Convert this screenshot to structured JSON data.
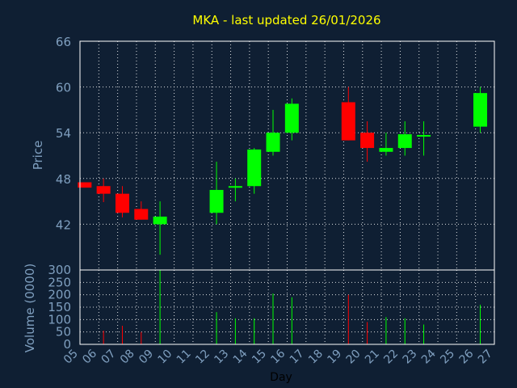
{
  "chart_data": {
    "type": "candlestick",
    "title": "MKA - last updated 26/01/2026",
    "xlabel": "Day",
    "price_ylabel": "Price",
    "volume_ylabel": "Volume (0000)",
    "x_ticks": [
      "05",
      "06",
      "07",
      "08",
      "09",
      "10",
      "11",
      "12",
      "13",
      "14",
      "15",
      "16",
      "17",
      "18",
      "19",
      "20",
      "21",
      "22",
      "23",
      "24",
      "25",
      "26",
      "27"
    ],
    "price_ylim": [
      36,
      66
    ],
    "price_yticks": [
      "42",
      "48",
      "54",
      "60",
      "66"
    ],
    "volume_ylim": [
      0,
      300
    ],
    "volume_yticks": [
      "0",
      "50",
      "100",
      "150",
      "200",
      "250",
      "300"
    ],
    "grid": true,
    "colors": {
      "up": "#00ff00",
      "down": "#ff0000",
      "background": "#0f1f33",
      "title": "#ffff00",
      "axis_text": "#7f9fbf"
    },
    "candles": [
      {
        "day": 5.25,
        "open": 47.5,
        "high": 47.5,
        "low": 46.8,
        "close": 46.8,
        "volume": 0
      },
      {
        "day": 6.25,
        "open": 47.0,
        "high": 48.0,
        "low": 44.9,
        "close": 46.0,
        "volume": 55
      },
      {
        "day": 7.25,
        "open": 46.0,
        "high": 47.0,
        "low": 42.9,
        "close": 43.5,
        "volume": 75
      },
      {
        "day": 8.25,
        "open": 44.0,
        "high": 45.0,
        "low": 42.6,
        "close": 42.6,
        "volume": 50
      },
      {
        "day": 9.25,
        "open": 42.0,
        "high": 45.0,
        "low": 38.0,
        "close": 43.0,
        "volume": 300
      },
      {
        "day": 12.25,
        "open": 43.5,
        "high": 50.2,
        "low": 42.0,
        "close": 46.5,
        "volume": 130
      },
      {
        "day": 13.25,
        "open": 46.8,
        "high": 48.0,
        "low": 45.0,
        "close": 47.0,
        "volume": 105
      },
      {
        "day": 14.25,
        "open": 47.0,
        "high": 52.0,
        "low": 46.0,
        "close": 51.8,
        "volume": 105
      },
      {
        "day": 15.25,
        "open": 51.5,
        "high": 57.0,
        "low": 51.0,
        "close": 54.0,
        "volume": 205
      },
      {
        "day": 16.25,
        "open": 54.0,
        "high": 58.5,
        "low": 53.0,
        "close": 57.8,
        "volume": 190
      },
      {
        "day": 19.25,
        "open": 58.0,
        "high": 60.0,
        "low": 53.0,
        "close": 53.0,
        "volume": 200
      },
      {
        "day": 20.25,
        "open": 54.0,
        "high": 55.5,
        "low": 50.2,
        "close": 52.0,
        "volume": 90
      },
      {
        "day": 21.25,
        "open": 51.5,
        "high": 54.0,
        "low": 51.0,
        "close": 52.0,
        "volume": 110
      },
      {
        "day": 22.25,
        "open": 52.0,
        "high": 55.5,
        "low": 51.0,
        "close": 53.8,
        "volume": 105
      },
      {
        "day": 23.25,
        "open": 53.5,
        "high": 55.5,
        "low": 51.0,
        "close": 53.7,
        "volume": 80
      },
      {
        "day": 26.25,
        "open": 54.8,
        "high": 60.0,
        "low": 54.0,
        "close": 59.2,
        "volume": 160
      }
    ]
  }
}
